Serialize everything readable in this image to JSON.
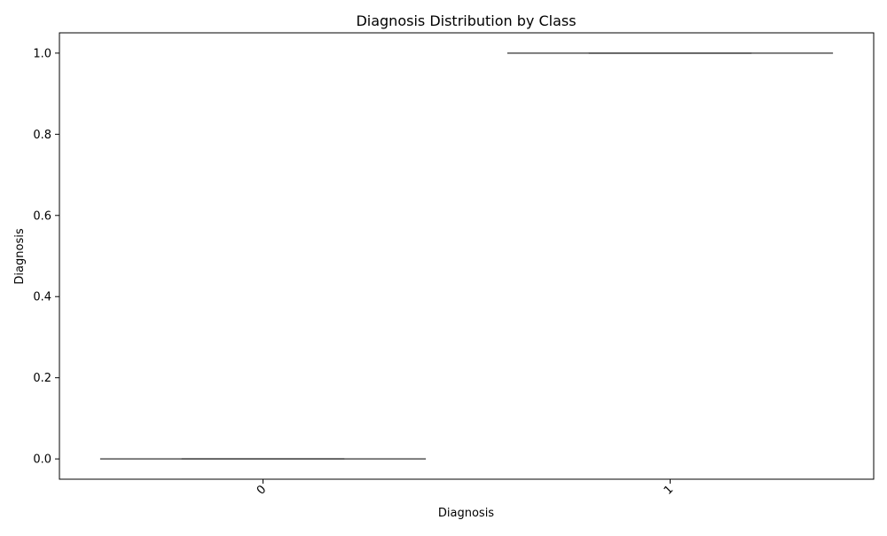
{
  "chart_data": {
    "type": "box",
    "title": "Diagnosis Distribution by Class",
    "xlabel": "Diagnosis",
    "ylabel": "Diagnosis",
    "categories": [
      "0",
      "1"
    ],
    "ylim": [
      -0.05,
      1.05
    ],
    "yticks": [
      0.0,
      0.2,
      0.4,
      0.6,
      0.8,
      1.0
    ],
    "ytick_labels": [
      "0.0",
      "0.2",
      "0.4",
      "0.6",
      "0.8",
      "1.0"
    ],
    "boxes": [
      {
        "category": "0",
        "min": 0,
        "q1": 0,
        "median": 0,
        "q3": 0,
        "max": 0
      },
      {
        "category": "1",
        "min": 1,
        "q1": 1,
        "median": 1,
        "q3": 1,
        "max": 1
      }
    ],
    "grid": false,
    "box_color": "#555555"
  }
}
